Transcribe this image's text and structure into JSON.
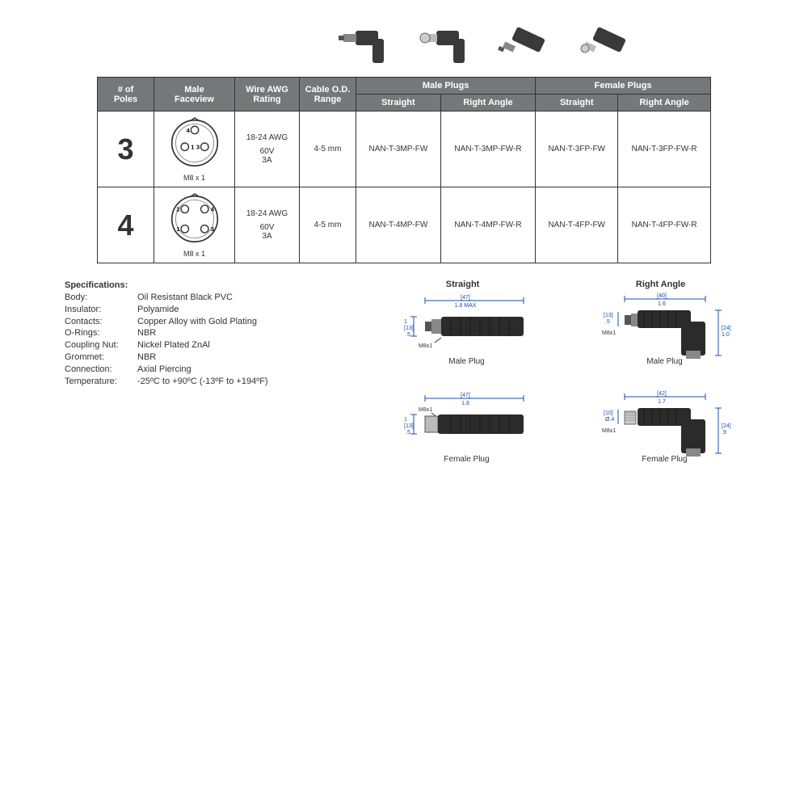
{
  "product_images": {
    "count": 4
  },
  "table": {
    "headers": {
      "poles": "# of\nPoles",
      "faceview": "Male\nFaceview",
      "wire": "Wire AWG\nRating",
      "cable": "Cable O.D.\nRange",
      "male_plugs": "Male Plugs",
      "female_plugs": "Female  Plugs",
      "straight": "Straight",
      "right_angle": "Right Angle"
    },
    "rows": [
      {
        "poles": "3",
        "faceview_pins": [
          "4",
          "1",
          "3"
        ],
        "faceview_label": "M8 x 1",
        "wire_l1": "18-24 AWG",
        "wire_l2": "60V",
        "wire_l3": "3A",
        "cable": "4-5 mm",
        "m_s": "NAN-T-3MP-FW",
        "m_r": "NAN-T-3MP-FW-R",
        "f_s": "NAN-T-3FP-FW",
        "f_r": "NAN-T-3FP-FW-R"
      },
      {
        "poles": "4",
        "faceview_pins": [
          "2",
          "4",
          "1",
          "3"
        ],
        "faceview_label": "M8 x 1",
        "wire_l1": "18-24 AWG",
        "wire_l2": "60V",
        "wire_l3": "3A",
        "cable": "4-5 mm",
        "m_s": "NAN-T-4MP-FW",
        "m_r": "NAN-T-4MP-FW-R",
        "f_s": "NAN-T-4FP-FW",
        "f_r": "NAN-T-4FP-FW-R"
      }
    ]
  },
  "specs": {
    "heading": "Specifications:",
    "items": [
      {
        "k": "Body:",
        "v": "Oil Resistant Black PVC"
      },
      {
        "k": "Insulator:",
        "v": "Polyamide"
      },
      {
        "k": "Contacts:",
        "v": "Copper Alloy with Gold Plating"
      },
      {
        "k": "O-Rings:",
        "v": "NBR"
      },
      {
        "k": "Coupling Nut:",
        "v": "Nickel Plated ZnAl"
      },
      {
        "k": "Grommet:",
        "v": "NBR"
      },
      {
        "k": "Connection:",
        "v": "Axial Piercing"
      },
      {
        "k": "Temperature:",
        "v": "-25ºC to +90ºC (-13ºF to +194ºF)"
      }
    ]
  },
  "diagrams": {
    "col_headers": {
      "straight": "Straight",
      "right_angle": "Right Angle"
    },
    "cells": [
      {
        "caption": "Male Plug",
        "type": "straight",
        "dims": {
          "len_mm": "[47]",
          "len_in": "1.8 MAX",
          "h_mm": "[13]",
          "h_in": ".5",
          "thread": "M8x1",
          "arrow": "1"
        }
      },
      {
        "caption": "Male Plug",
        "type": "right_angle",
        "dims": {
          "len_mm": "[40]",
          "len_in": "1.6",
          "h_mm": "[13]",
          "h_in": ".5",
          "d_mm": "[24]",
          "d_in": "1.0",
          "thread": "M8x1"
        }
      },
      {
        "caption": "Female Plug",
        "type": "straight",
        "dims": {
          "len_mm": "[47]",
          "len_in": "1.8",
          "h_mm": "[13]",
          "h_in": ".5",
          "thread": "M8x1",
          "arrow": "1"
        }
      },
      {
        "caption": "Female Plug",
        "type": "right_angle",
        "dims": {
          "len_mm": "[42]",
          "len_in": "1.7",
          "h_mm": "[10]",
          "h_in": "Ø.4",
          "d_mm": "[24]",
          "d_in": ".9",
          "thread": "M8x1"
        }
      }
    ]
  },
  "colors": {
    "header_bg": "#767779",
    "header_fg": "#ffffff",
    "border": "#333333",
    "body_bg": "#ffffff",
    "text": "#333333",
    "dim_line": "#1a4fa3",
    "connector_dark": "#2b2b2b",
    "connector_light": "#9a9a9a"
  }
}
